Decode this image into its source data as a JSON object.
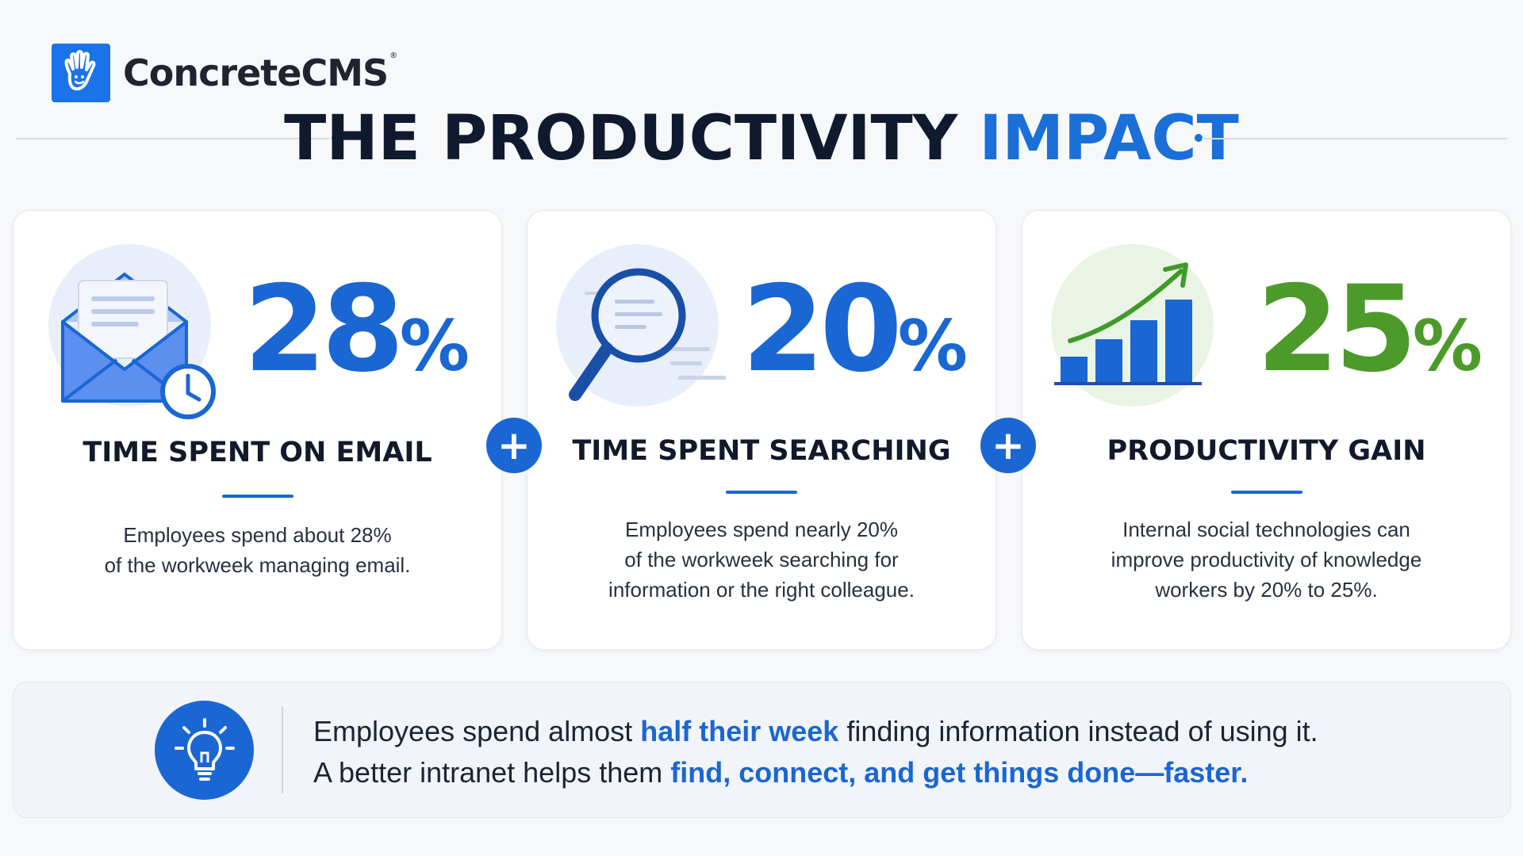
{
  "brand": {
    "name": "ConcreteCMS",
    "reg": "®",
    "accent": "#1a73e8"
  },
  "title": {
    "part1": "THE PRODUCTIVITY",
    "part2": "IMPACT"
  },
  "cards": [
    {
      "stat": "28",
      "pct": "%",
      "heading": "TIME SPENT ON EMAIL",
      "desc_line1": "Employees spend about 28%",
      "desc_line2": "of the workweek managing email.",
      "icon": "envelope-clock-icon",
      "color": "#1a66d2"
    },
    {
      "stat": "20",
      "pct": "%",
      "heading": "TIME SPENT SEARCHING",
      "desc_line1": "Employees spend nearly 20%",
      "desc_line2": "of the workweek searching for",
      "desc_line3": "information or the right colleague.",
      "icon": "magnifier-icon",
      "color": "#1a66d2"
    },
    {
      "stat": "25",
      "pct": "%",
      "heading": "PRODUCTIVITY GAIN",
      "desc_line1": "Internal social technologies can",
      "desc_line2": "improve productivity of knowledge",
      "desc_line3": "workers by 20% to 25%.",
      "icon": "growth-chart-icon",
      "color": "#4c9a2a"
    }
  ],
  "plus_symbol": "+",
  "banner": {
    "line1_a": "Employees spend almost ",
    "line1_hl": "half their week",
    "line1_b": " finding information instead of using it.",
    "line2_a": "A better intranet helps them ",
    "line2_hl": "find, connect, and get things done—faster.",
    "icon": "lightbulb-icon"
  }
}
